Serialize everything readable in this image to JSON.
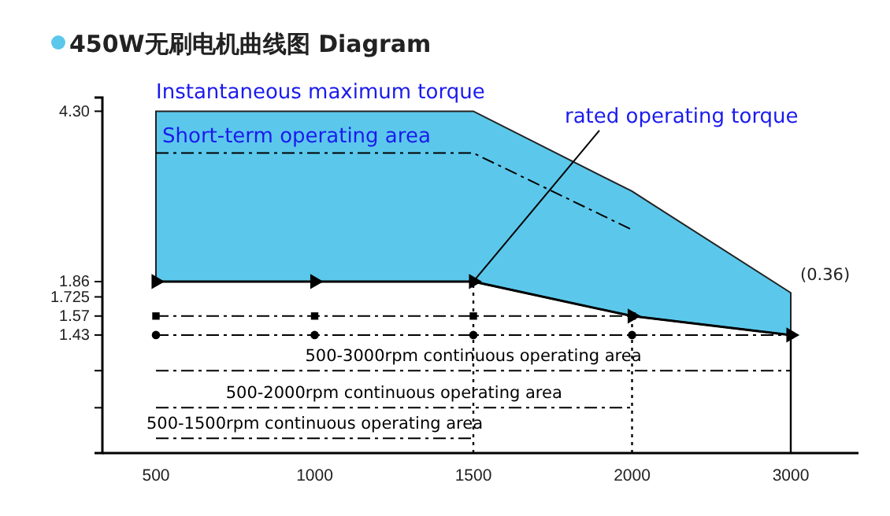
{
  "chart_data": {
    "type": "line",
    "title": "450W无刷电机曲线图 Diagram",
    "categories": [
      "500",
      "1000",
      "1500",
      "2000",
      "3000"
    ],
    "series": [
      {
        "type": "area",
        "color": "#5bc8eb",
        "values": [
          4.3,
          4.3,
          4.3,
          2.9,
          1.76
        ]
      },
      {
        "color": "#000000",
        "values": [
          1.86,
          1.86,
          1.86,
          1.57,
          1.43
        ],
        "marker": "triangle",
        "line_style": "solid"
      },
      {
        "color": "#000000",
        "values": [
          3.5,
          3.5,
          3.5,
          2.4,
          null
        ],
        "marker": "none",
        "line_style": "dashed"
      },
      {
        "color": "#000000",
        "values": [
          1.57,
          1.57,
          1.57,
          1.57,
          null
        ],
        "marker": "square",
        "line_style": "dashed"
      },
      {
        "color": "#000000",
        "values": [
          1.43,
          1.43,
          1.43,
          1.43,
          1.43
        ],
        "marker": "circle",
        "line_style": "dashed"
      },
      {
        "name": "500-3000rpm continuous operating area",
        "color": "#000000",
        "values": [
          1.2,
          1.2,
          1.2,
          1.2,
          1.2
        ],
        "marker": "none",
        "line_style": "dashed"
      },
      {
        "name": "500-2000rpm continuous operating area",
        "color": "#000000",
        "values": [
          1.0,
          1.0,
          1.0,
          1.0,
          null
        ],
        "marker": "none",
        "line_style": "dashed"
      },
      {
        "name": "500-1500rpm continuous operating area",
        "color": "#000000",
        "values": [
          0.86,
          0.86,
          0.86,
          null,
          null
        ],
        "marker": "none",
        "line_style": "dashed"
      }
    ],
    "ref_lines": [
      {
        "axis": "x",
        "value": "1500",
        "line_style": "dotted"
      },
      {
        "axis": "x",
        "value": "2000",
        "line_style": "dotted"
      },
      {
        "axis": "x",
        "value": "3000",
        "line_style": "solid"
      }
    ],
    "annotations": [
      {
        "text": "Instantaneous maximum torque",
        "x": "500",
        "y": 4.3
      },
      {
        "text": "Short-term operating area",
        "x": "500",
        "y": 4.3
      },
      {
        "text": "rated operating torque",
        "x": "1500",
        "y": 1.86
      },
      {
        "text": "(0.36)",
        "x": "3000",
        "y": 1.76
      }
    ],
    "log": "y",
    "ylim": [
      0.8,
      4.6
    ],
    "yticks": [
      {
        "value": 4.3,
        "label": "4.30"
      },
      1.86,
      1.725,
      1.57,
      1.43,
      {
        "value": 1.2,
        "label": null
      },
      {
        "value": 1.0,
        "label": null
      }
    ],
    "grid": false,
    "legend": false
  }
}
